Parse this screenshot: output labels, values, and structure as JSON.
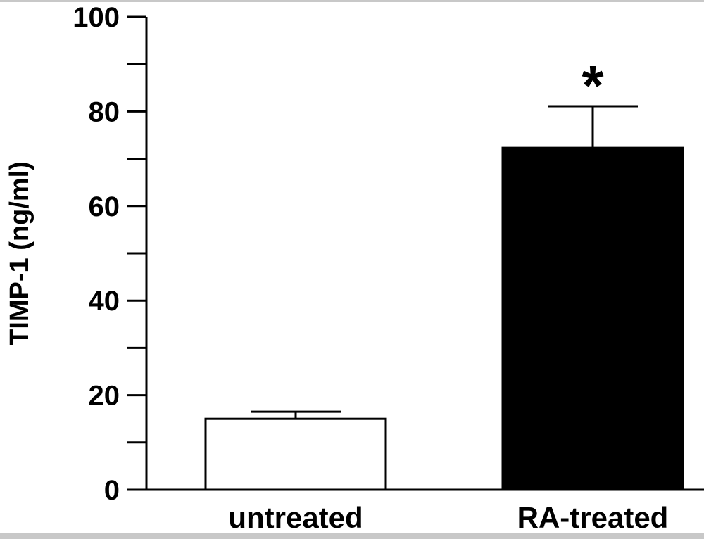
{
  "chart_data": {
    "type": "bar",
    "categories": [
      "untreated",
      "RA-treated"
    ],
    "values": [
      15,
      72.3
    ],
    "errors": [
      1.5,
      8.8
    ],
    "bar_colors": [
      "#ffffff",
      "#000000"
    ],
    "annotations": [
      "",
      "*"
    ],
    "xlabel": "",
    "ylabel": "TIMP-1 (ng/ml)",
    "ylim": [
      0,
      100
    ],
    "yticks": [
      0,
      20,
      40,
      60,
      80,
      100
    ],
    "minor_tick_step": 10,
    "grid": false
  }
}
